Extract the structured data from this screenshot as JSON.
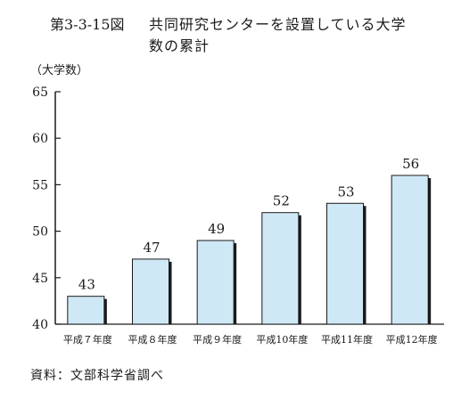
{
  "figure": {
    "number": "第3-3-15図",
    "title_line1": "共同研究センターを設置している大学",
    "title_line2": "数の累計",
    "source": "資料：文部科学省調べ"
  },
  "colors": {
    "bar_fill": "#cfe8f5",
    "bar_stroke": "#1a1a1a",
    "bar_shadow": "#1a1a1a"
  },
  "chart_data": {
    "type": "bar",
    "title": "共同研究センターを設置している大学数の累計",
    "ylabel": "（大学数）",
    "xlabel": "",
    "ylim": [
      40,
      65
    ],
    "yticks": [
      40,
      45,
      50,
      55,
      60,
      65
    ],
    "categories": [
      "平成７年度",
      "平成８年度",
      "平成９年度",
      "平成10年度",
      "平成11年度",
      "平成12年度"
    ],
    "values": [
      43,
      47,
      49,
      52,
      53,
      56
    ],
    "data_labels": [
      "43",
      "47",
      "49",
      "52",
      "53",
      "56"
    ],
    "grid": false,
    "legend": "none"
  }
}
